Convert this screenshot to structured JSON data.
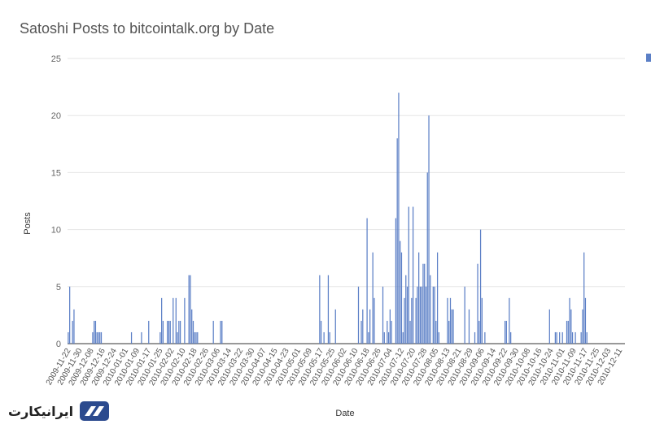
{
  "chart_data": {
    "type": "bar",
    "title": "Satoshi Posts to bitcointalk.org by Date",
    "xlabel": "Date",
    "ylabel": "Posts",
    "ylim": [
      0,
      25
    ],
    "yticks": [
      0,
      5,
      10,
      15,
      20,
      25
    ],
    "grid": true,
    "legend": "top-right",
    "bar_color": "#5b7fc6",
    "x_start": "2009-11-22",
    "x_end": "2010-12-14",
    "xtick_labels": [
      "2009-11-22",
      "2009-11-30",
      "2009-12-08",
      "2009-12-16",
      "2009-12-24",
      "2010-01-01",
      "2010-01-09",
      "2010-01-17",
      "2010-01-25",
      "2010-02-02",
      "2010-02-10",
      "2010-02-18",
      "2010-02-26",
      "2010-03-06",
      "2010-03-14",
      "2010-03-22",
      "2010-03-30",
      "2010-04-07",
      "2010-04-15",
      "2010-04-23",
      "2010-05-01",
      "2010-05-09",
      "2010-05-17",
      "2010-05-25",
      "2010-06-02",
      "2010-06-10",
      "2010-06-18",
      "2010-06-26",
      "2010-07-04",
      "2010-07-12",
      "2010-07-20",
      "2010-07-28",
      "2010-08-05",
      "2010-08-13",
      "2010-08-21",
      "2010-08-29",
      "2010-09-06",
      "2010-09-14",
      "2010-09-22",
      "2010-09-30",
      "2010-10-08",
      "2010-10-16",
      "2010-10-24",
      "2010-11-01",
      "2010-11-09",
      "2010-11-17",
      "2010-11-25",
      "2010-12-03",
      "2010-12-11"
    ],
    "points": [
      [
        "2009-11-22",
        1
      ],
      [
        "2009-11-23",
        5
      ],
      [
        "2009-11-25",
        2
      ],
      [
        "2009-11-26",
        3
      ],
      [
        "2009-12-09",
        1
      ],
      [
        "2009-12-10",
        2
      ],
      [
        "2009-12-11",
        2
      ],
      [
        "2009-12-12",
        1
      ],
      [
        "2009-12-13",
        1
      ],
      [
        "2009-12-14",
        1
      ],
      [
        "2009-12-15",
        1
      ],
      [
        "2010-01-05",
        1
      ],
      [
        "2010-01-12",
        1
      ],
      [
        "2010-01-17",
        2
      ],
      [
        "2010-01-25",
        1
      ],
      [
        "2010-01-26",
        4
      ],
      [
        "2010-01-27",
        2
      ],
      [
        "2010-01-30",
        2
      ],
      [
        "2010-01-31",
        2
      ],
      [
        "2010-02-01",
        2
      ],
      [
        "2010-02-03",
        4
      ],
      [
        "2010-02-05",
        4
      ],
      [
        "2010-02-06",
        1
      ],
      [
        "2010-02-07",
        2
      ],
      [
        "2010-02-08",
        2
      ],
      [
        "2010-02-11",
        4
      ],
      [
        "2010-02-14",
        6
      ],
      [
        "2010-02-15",
        6
      ],
      [
        "2010-02-16",
        3
      ],
      [
        "2010-02-17",
        2
      ],
      [
        "2010-02-18",
        1
      ],
      [
        "2010-02-19",
        1
      ],
      [
        "2010-02-20",
        1
      ],
      [
        "2010-03-03",
        2
      ],
      [
        "2010-03-08",
        2
      ],
      [
        "2010-03-09",
        2
      ],
      [
        "2010-05-16",
        6
      ],
      [
        "2010-05-17",
        2
      ],
      [
        "2010-05-19",
        1
      ],
      [
        "2010-05-22",
        6
      ],
      [
        "2010-05-23",
        1
      ],
      [
        "2010-05-27",
        3
      ],
      [
        "2010-06-12",
        5
      ],
      [
        "2010-06-14",
        2
      ],
      [
        "2010-06-15",
        3
      ],
      [
        "2010-06-18",
        11
      ],
      [
        "2010-06-19",
        1
      ],
      [
        "2010-06-20",
        3
      ],
      [
        "2010-06-22",
        8
      ],
      [
        "2010-06-23",
        4
      ],
      [
        "2010-06-29",
        5
      ],
      [
        "2010-06-30",
        1
      ],
      [
        "2010-07-02",
        2
      ],
      [
        "2010-07-03",
        1
      ],
      [
        "2010-07-04",
        3
      ],
      [
        "2010-07-05",
        2
      ],
      [
        "2010-07-08",
        11
      ],
      [
        "2010-07-09",
        18
      ],
      [
        "2010-07-10",
        22
      ],
      [
        "2010-07-11",
        9
      ],
      [
        "2010-07-12",
        8
      ],
      [
        "2010-07-13",
        1
      ],
      [
        "2010-07-14",
        4
      ],
      [
        "2010-07-15",
        6
      ],
      [
        "2010-07-16",
        5
      ],
      [
        "2010-07-17",
        12
      ],
      [
        "2010-07-18",
        2
      ],
      [
        "2010-07-19",
        4
      ],
      [
        "2010-07-20",
        12
      ],
      [
        "2010-07-22",
        4
      ],
      [
        "2010-07-23",
        5
      ],
      [
        "2010-07-24",
        8
      ],
      [
        "2010-07-25",
        5
      ],
      [
        "2010-07-26",
        5
      ],
      [
        "2010-07-27",
        7
      ],
      [
        "2010-07-28",
        7
      ],
      [
        "2010-07-29",
        5
      ],
      [
        "2010-07-30",
        15
      ],
      [
        "2010-07-31",
        20
      ],
      [
        "2010-08-01",
        6
      ],
      [
        "2010-08-03",
        5
      ],
      [
        "2010-08-04",
        5
      ],
      [
        "2010-08-05",
        2
      ],
      [
        "2010-08-06",
        8
      ],
      [
        "2010-08-07",
        1
      ],
      [
        "2010-08-13",
        4
      ],
      [
        "2010-08-14",
        2
      ],
      [
        "2010-08-15",
        4
      ],
      [
        "2010-08-16",
        3
      ],
      [
        "2010-08-17",
        3
      ],
      [
        "2010-08-25",
        5
      ],
      [
        "2010-08-28",
        3
      ],
      [
        "2010-09-01",
        1
      ],
      [
        "2010-09-03",
        7
      ],
      [
        "2010-09-04",
        2
      ],
      [
        "2010-09-05",
        10
      ],
      [
        "2010-09-06",
        4
      ],
      [
        "2010-09-08",
        1
      ],
      [
        "2010-09-22",
        2
      ],
      [
        "2010-09-23",
        2
      ],
      [
        "2010-09-25",
        4
      ],
      [
        "2010-09-26",
        1
      ],
      [
        "2010-10-23",
        3
      ],
      [
        "2010-10-27",
        1
      ],
      [
        "2010-10-28",
        1
      ],
      [
        "2010-10-30",
        1
      ],
      [
        "2010-11-01",
        1
      ],
      [
        "2010-11-04",
        2
      ],
      [
        "2010-11-05",
        2
      ],
      [
        "2010-11-06",
        4
      ],
      [
        "2010-11-07",
        3
      ],
      [
        "2010-11-08",
        1
      ],
      [
        "2010-11-10",
        1
      ],
      [
        "2010-11-14",
        1
      ],
      [
        "2010-11-15",
        3
      ],
      [
        "2010-11-16",
        8
      ],
      [
        "2010-11-17",
        4
      ],
      [
        "2010-11-18",
        1
      ]
    ]
  },
  "watermark": {
    "text": "ایرانیکارت",
    "icon": "card-logo-icon",
    "color": "#2b4a8e"
  }
}
